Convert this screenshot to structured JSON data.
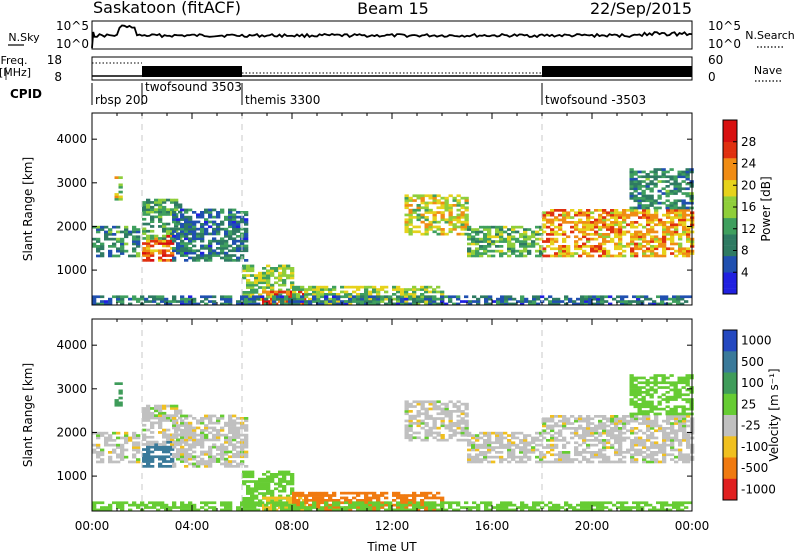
{
  "header": {
    "station": "Saskatoon (fitACF)",
    "beam": "Beam 15",
    "date": "22/Sep/2015"
  },
  "noise_panel": {
    "left_label": "N.Sky",
    "right_label": "N.Search",
    "left_ticks": [
      "10^5",
      "10^0"
    ],
    "right_ticks": [
      "10^5",
      "10^0"
    ]
  },
  "freq_panel": {
    "left_label_1": "Freq.",
    "left_label_2": "[MHz]",
    "right_label": "Nave",
    "left_ticks": [
      "18",
      "8"
    ],
    "right_ticks": [
      "60",
      "0"
    ]
  },
  "cpid_panel": {
    "label": "CPID",
    "modes": [
      {
        "name": "rbsp 200",
        "start_hour": 0.0
      },
      {
        "name": "twofsound 3503",
        "start_hour": 2.0
      },
      {
        "name": "themis 3300",
        "start_hour": 6.0
      },
      {
        "name": "twofsound -3503",
        "start_hour": 18.0
      }
    ]
  },
  "x_axis": {
    "label": "Time UT",
    "ticks": [
      "00:00",
      "04:00",
      "08:00",
      "12:00",
      "16:00",
      "20:00",
      "00:00"
    ]
  },
  "power_panel": {
    "ylabel": "Slant Range [km]",
    "yticks": [
      "1000",
      "2000",
      "3000",
      "4000"
    ],
    "colorbar_label": "Power [dB]",
    "colorbar_ticks": [
      "4",
      "8",
      "12",
      "16",
      "20",
      "24",
      "28"
    ]
  },
  "velocity_panel": {
    "ylabel": "Slant Range [km]",
    "yticks": [
      "1000",
      "2000",
      "3000",
      "4000"
    ],
    "colorbar_label": "Velocity [m s⁻¹]",
    "colorbar_ticks": [
      "1000",
      "500",
      "100",
      "25",
      "-25",
      "-100",
      "-500",
      "-1000"
    ]
  },
  "chart_data": {
    "type": "heatmap",
    "title": "Saskatoon (fitACF) Beam 15 22/Sep/2015",
    "x_unit": "hours UT",
    "xlim": [
      0,
      24
    ],
    "ylim_km": [
      200,
      4600
    ],
    "mode_boundaries_hours": [
      2,
      6,
      18
    ],
    "power_colorscale": {
      "range_db": [
        0,
        32
      ],
      "colors": [
        "#2020e0",
        "#2050b0",
        "#2e7a62",
        "#3f9f5e",
        "#8fce3a",
        "#e6d21c",
        "#f08c14",
        "#e03010",
        "#d81010"
      ]
    },
    "velocity_colorscale": {
      "levels": [
        1000,
        500,
        100,
        25,
        -25,
        -100,
        -500,
        -1000
      ],
      "colors": [
        "#2448c0",
        "#3a7a9a",
        "#3f9c5a",
        "#66cc33",
        "#c0c0c0",
        "#f0c020",
        "#f07a10",
        "#e02020"
      ],
      "ground_scatter_color": "#c0c0c0"
    },
    "echo_regions": [
      {
        "t0": 0.0,
        "t1": 1.8,
        "r0": 1300,
        "r1": 2000,
        "power": 10,
        "vel": 0
      },
      {
        "t0": 0.9,
        "t1": 1.2,
        "r0": 2600,
        "r1": 3100,
        "power": 18,
        "vel": 300
      },
      {
        "t0": 2.0,
        "t1": 3.2,
        "r0": 1200,
        "r1": 1800,
        "power": 25,
        "vel": 600
      },
      {
        "t0": 2.0,
        "t1": 3.6,
        "r0": 1700,
        "r1": 2600,
        "power": 12,
        "vel": 0
      },
      {
        "t0": 3.2,
        "t1": 6.2,
        "r0": 1200,
        "r1": 2400,
        "power": 8,
        "vel": 0
      },
      {
        "t0": 6.0,
        "t1": 8.0,
        "r0": 300,
        "r1": 1100,
        "power": 16,
        "vel": 60
      },
      {
        "t0": 6.8,
        "t1": 8.5,
        "r0": 200,
        "r1": 500,
        "power": 26,
        "vel": -60
      },
      {
        "t0": 8.0,
        "t1": 14.0,
        "r0": 200,
        "r1": 600,
        "power": 16,
        "vel": -150
      },
      {
        "t0": 12.5,
        "t1": 15.0,
        "r0": 1800,
        "r1": 2700,
        "power": 18,
        "vel": 0
      },
      {
        "t0": 15.0,
        "t1": 18.0,
        "r0": 1300,
        "r1": 2000,
        "power": 14,
        "vel": 0
      },
      {
        "t0": 18.0,
        "t1": 24.0,
        "r0": 1300,
        "r1": 2400,
        "power": 22,
        "vel": 0
      },
      {
        "t0": 21.5,
        "t1": 24.0,
        "r0": 2400,
        "r1": 3300,
        "power": 10,
        "vel": 60
      },
      {
        "t0": 0.0,
        "t1": 24.0,
        "r0": 200,
        "r1": 400,
        "power": 8,
        "vel": 60
      }
    ]
  }
}
